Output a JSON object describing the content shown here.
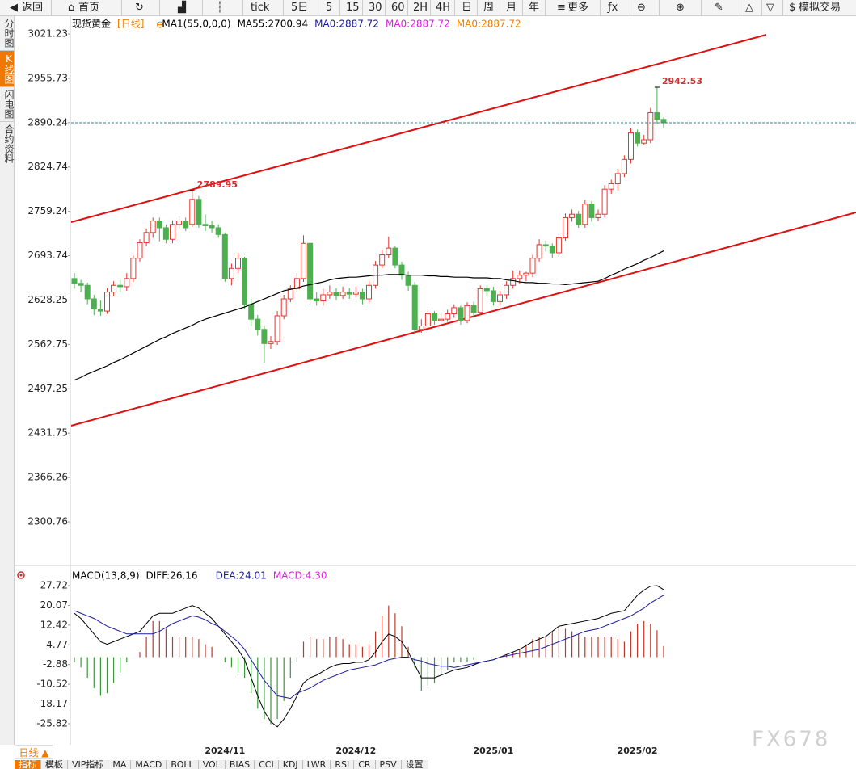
{
  "ui": {
    "toolbar": [
      "返回",
      "首页",
      "tick",
      "5日",
      "5",
      "15",
      "30",
      "60",
      "2H",
      "4H",
      "日",
      "周",
      "月",
      "年",
      "更多",
      "模拟交易"
    ],
    "side_tabs": [
      "分时图",
      "K线图",
      "闪电图",
      "合约资料"
    ],
    "period_button": "日线 ▲",
    "bottom_tabs": [
      "指标",
      "模板",
      "VIP指标",
      "MA",
      "MACD",
      "BOLL",
      "VOL",
      "BIAS",
      "CCI",
      "KDJ",
      "LWR",
      "RSI",
      "CR",
      "PSV",
      "设置"
    ],
    "watermark": "FX678"
  },
  "chart_data": [
    {
      "type": "candlestick",
      "legend": [
        {
          "text": "现货黄金",
          "color": "#000000"
        },
        {
          "text": "[日线]",
          "color": "#f08000"
        },
        {
          "text": "MA1(55,0,0,0)",
          "color": "#000000"
        },
        {
          "text": "MA55:2700.94",
          "color": "#000000"
        },
        {
          "text": "MA0:2887.72",
          "color": "#1a1aa0"
        },
        {
          "text": "MA0:2887.72",
          "color": "#e020e0"
        },
        {
          "text": "MA0:2887.72",
          "color": "#f08000"
        }
      ],
      "categories": [
        null,
        null,
        null,
        null,
        null,
        null,
        null,
        null,
        null,
        null,
        null,
        null,
        null,
        null,
        null,
        null,
        null,
        null,
        null,
        null,
        null,
        null,
        null,
        "2024/11",
        null,
        null,
        null,
        null,
        null,
        null,
        null,
        null,
        null,
        null,
        null,
        null,
        null,
        null,
        null,
        null,
        null,
        null,
        null,
        "2024/12",
        null,
        null,
        null,
        null,
        null,
        null,
        null,
        null,
        null,
        null,
        null,
        null,
        null,
        null,
        null,
        null,
        null,
        null,
        null,
        null,
        "2025/01",
        null,
        null,
        null,
        null,
        null,
        null,
        null,
        null,
        null,
        null,
        null,
        null,
        null,
        null,
        null,
        null,
        null,
        null,
        null,
        null,
        null,
        "2025/02",
        null,
        null,
        null,
        null
      ],
      "candles": [
        [
          2660,
          2668,
          2645,
          2653
        ],
        [
          2653,
          2658,
          2640,
          2650
        ],
        [
          2650,
          2654,
          2622,
          2630
        ],
        [
          2630,
          2636,
          2606,
          2615
        ],
        [
          2615,
          2628,
          2605,
          2612
        ],
        [
          2612,
          2646,
          2608,
          2640
        ],
        [
          2640,
          2656,
          2634,
          2650
        ],
        [
          2650,
          2658,
          2640,
          2648
        ],
        [
          2648,
          2668,
          2642,
          2660
        ],
        [
          2660,
          2694,
          2655,
          2690
        ],
        [
          2690,
          2718,
          2685,
          2713
        ],
        [
          2713,
          2734,
          2708,
          2728
        ],
        [
          2728,
          2750,
          2720,
          2745
        ],
        [
          2745,
          2750,
          2715,
          2735
        ],
        [
          2735,
          2740,
          2712,
          2718
        ],
        [
          2718,
          2746,
          2712,
          2740
        ],
        [
          2740,
          2752,
          2734,
          2745
        ],
        [
          2745,
          2750,
          2730,
          2735
        ],
        [
          2740,
          2789.95,
          2736,
          2777
        ],
        [
          2777,
          2782,
          2735,
          2740
        ],
        [
          2740,
          2755,
          2730,
          2738
        ],
        [
          2738,
          2745,
          2728,
          2735
        ],
        [
          2735,
          2740,
          2720,
          2725
        ],
        [
          2725,
          2728,
          2655,
          2660
        ],
        [
          2660,
          2682,
          2650,
          2675
        ],
        [
          2675,
          2698,
          2668,
          2690
        ],
        [
          2690,
          2692,
          2615,
          2622
        ],
        [
          2622,
          2630,
          2590,
          2600
        ],
        [
          2600,
          2606,
          2576,
          2585
        ],
        [
          2585,
          2590,
          2536,
          2564
        ],
        [
          2564,
          2575,
          2556,
          2567
        ],
        [
          2567,
          2612,
          2562,
          2605
        ],
        [
          2605,
          2636,
          2600,
          2630
        ],
        [
          2630,
          2650,
          2625,
          2645
        ],
        [
          2645,
          2668,
          2640,
          2660
        ],
        [
          2660,
          2724,
          2655,
          2712
        ],
        [
          2712,
          2715,
          2622,
          2630
        ],
        [
          2630,
          2640,
          2620,
          2627
        ],
        [
          2627,
          2645,
          2620,
          2636
        ],
        [
          2636,
          2650,
          2630,
          2640
        ],
        [
          2640,
          2646,
          2628,
          2635
        ],
        [
          2635,
          2648,
          2630,
          2640
        ],
        [
          2640,
          2646,
          2630,
          2637
        ],
        [
          2637,
          2648,
          2632,
          2640
        ],
        [
          2640,
          2645,
          2622,
          2630
        ],
        [
          2630,
          2656,
          2625,
          2650
        ],
        [
          2650,
          2686,
          2645,
          2680
        ],
        [
          2680,
          2702,
          2675,
          2695
        ],
        [
          2695,
          2722,
          2690,
          2705
        ],
        [
          2705,
          2708,
          2675,
          2680
        ],
        [
          2680,
          2685,
          2658,
          2665
        ],
        [
          2665,
          2670,
          2642,
          2650
        ],
        [
          2650,
          2655,
          2580,
          2585
        ],
        [
          2585,
          2600,
          2580,
          2590
        ],
        [
          2590,
          2614,
          2585,
          2608
        ],
        [
          2608,
          2612,
          2592,
          2598
        ],
        [
          2598,
          2608,
          2592,
          2600
        ],
        [
          2600,
          2614,
          2596,
          2608
        ],
        [
          2608,
          2622,
          2602,
          2617
        ],
        [
          2617,
          2620,
          2592,
          2598
        ],
        [
          2598,
          2625,
          2594,
          2620
        ],
        [
          2620,
          2626,
          2604,
          2610
        ],
        [
          2610,
          2650,
          2606,
          2645
        ],
        [
          2645,
          2650,
          2634,
          2642
        ],
        [
          2642,
          2648,
          2620,
          2626
        ],
        [
          2626,
          2642,
          2620,
          2636
        ],
        [
          2636,
          2656,
          2630,
          2650
        ],
        [
          2650,
          2672,
          2645,
          2660
        ],
        [
          2660,
          2672,
          2652,
          2665
        ],
        [
          2665,
          2670,
          2656,
          2668
        ],
        [
          2668,
          2695,
          2662,
          2690
        ],
        [
          2690,
          2718,
          2685,
          2710
        ],
        [
          2710,
          2716,
          2700,
          2708
        ],
        [
          2708,
          2712,
          2690,
          2698
        ],
        [
          2698,
          2726,
          2692,
          2720
        ],
        [
          2720,
          2756,
          2716,
          2750
        ],
        [
          2750,
          2762,
          2744,
          2755
        ],
        [
          2755,
          2760,
          2735,
          2740
        ],
        [
          2740,
          2776,
          2735,
          2770
        ],
        [
          2770,
          2774,
          2744,
          2750
        ],
        [
          2750,
          2762,
          2745,
          2755
        ],
        [
          2755,
          2798,
          2750,
          2792
        ],
        [
          2792,
          2806,
          2785,
          2800
        ],
        [
          2800,
          2822,
          2790,
          2815
        ],
        [
          2815,
          2842,
          2810,
          2836
        ],
        [
          2836,
          2882,
          2830,
          2875
        ],
        [
          2875,
          2880,
          2855,
          2860
        ],
        [
          2860,
          2872,
          2858,
          2865
        ],
        [
          2865,
          2912,
          2860,
          2905
        ],
        [
          2905,
          2942.53,
          2888,
          2895
        ],
        [
          2895,
          2898,
          2882,
          2890
        ]
      ],
      "series": [
        {
          "color": "#000000",
          "values": [
            2510,
            2514,
            2519,
            2523,
            2527,
            2531,
            2536,
            2540,
            2545,
            2550,
            2555,
            2560,
            2565,
            2570,
            2574,
            2579,
            2583,
            2587,
            2591,
            2596,
            2600,
            2603,
            2606,
            2609,
            2612,
            2615,
            2618,
            2622,
            2626,
            2630,
            2634,
            2638,
            2642,
            2644,
            2646,
            2649,
            2651,
            2653,
            2655,
            2658,
            2660,
            2661,
            2662,
            2662,
            2663,
            2664,
            2665,
            2665,
            2666,
            2666,
            2666,
            2665,
            2665,
            2665,
            2664,
            2664,
            2663,
            2663,
            2662,
            2662,
            2662,
            2661,
            2661,
            2661,
            2660,
            2660,
            2658,
            2657,
            2655,
            2654,
            2654,
            2653,
            2653,
            2652,
            2652,
            2651,
            2652,
            2653,
            2654,
            2655,
            2656,
            2660,
            2665,
            2669,
            2674,
            2678,
            2682,
            2687,
            2691,
            2696,
            2700.94
          ]
        }
      ],
      "up_color": "#e8332e",
      "down_color": "#4caf50",
      "high_label_color": "#d03030",
      "price_line_color": "#2a8aa0",
      "ylim": [
        2236.4,
        3045.1
      ],
      "yticks": [
        3021.23,
        2955.73,
        2890.24,
        2824.74,
        2759.24,
        2693.74,
        2628.25,
        2562.75,
        2497.25,
        2431.75,
        2366.26,
        2300.76
      ]
    },
    {
      "type": "macd",
      "legend": [
        {
          "text": "MACD(13,8,9)",
          "color": "#000000"
        },
        {
          "text": "DIFF:26.16",
          "color": "#000000"
        },
        {
          "text": "DEA:24.01",
          "color": "#1a1aa0"
        },
        {
          "text": "MACD:4.30",
          "color": "#e020e0"
        }
      ],
      "series": [
        {
          "color": "#000000",
          "values": [
            17,
            15,
            12,
            9,
            6,
            5,
            6,
            7,
            8,
            9,
            10,
            13,
            16,
            17,
            17,
            17,
            18,
            19,
            20,
            19,
            17,
            15,
            12,
            9,
            6,
            3,
            -1,
            -8,
            -15,
            -21,
            -25,
            -27,
            -24,
            -20,
            -15,
            -10,
            -8,
            -7,
            -5.5,
            -4,
            -3,
            -2.5,
            -2.5,
            -2,
            -2,
            -1,
            2,
            6,
            9,
            8,
            6,
            2,
            -3,
            -8,
            -8,
            -8,
            -7,
            -6,
            -5,
            -4.5,
            -4,
            -3,
            -2,
            -1.5,
            -1,
            0,
            1,
            2,
            3,
            4.5,
            6,
            7,
            8,
            10,
            12,
            12.5,
            13,
            13.5,
            14,
            14.5,
            15,
            16,
            17,
            17.5,
            18,
            21,
            24,
            26,
            27.5,
            27.7,
            26.16
          ]
        },
        {
          "color": "#1a1aa0",
          "values": [
            18,
            17,
            16,
            15,
            13.5,
            12,
            11,
            10,
            9,
            9,
            9,
            9,
            9,
            10,
            11.5,
            13,
            14,
            15,
            16,
            15.5,
            14.5,
            13,
            12,
            10,
            8,
            6,
            3,
            -1,
            -5,
            -9,
            -12,
            -15,
            -15.5,
            -16,
            -14,
            -13,
            -12,
            -10.5,
            -9,
            -8,
            -7,
            -6,
            -5,
            -4.5,
            -4,
            -3.5,
            -3,
            -2,
            -1,
            -0.5,
            0,
            0,
            -1,
            -1.5,
            -2.5,
            -3,
            -3.5,
            -3.5,
            -4,
            -3.5,
            -3,
            -2.5,
            -2,
            -1.5,
            -1,
            0,
            0.5,
            1,
            1.5,
            2,
            2.5,
            3,
            4,
            5,
            6,
            7,
            8,
            9,
            10,
            10.5,
            11,
            12,
            13,
            14,
            15,
            16,
            17.5,
            19,
            21,
            22.5,
            24.01
          ]
        }
      ],
      "bars": {
        "up_color": "#c0392b",
        "down_color": "#3a9a3a",
        "values": [
          -2,
          -4,
          -8,
          -12,
          -15,
          -14,
          -10,
          -6,
          -2,
          0,
          2,
          8,
          14,
          14,
          11,
          8,
          8,
          8,
          8,
          7,
          5,
          4,
          0,
          -2,
          -4,
          -6,
          -8,
          -14,
          -20,
          -24,
          -26,
          -24,
          -17,
          -8,
          -2,
          6,
          8,
          7,
          7,
          8,
          8,
          7,
          5,
          5,
          4,
          5,
          10,
          16,
          20,
          17,
          12,
          4,
          -4,
          -13,
          -11,
          -10,
          -7,
          -5,
          -2,
          -2,
          -2,
          -1,
          0,
          0,
          0,
          0,
          1,
          2,
          3,
          5,
          7,
          8,
          8,
          10,
          12,
          11,
          10,
          9,
          8,
          8,
          8,
          8,
          8,
          7,
          6,
          10,
          13,
          14,
          13,
          10.4,
          4.3
        ]
      },
      "ylim": [
        -34.9,
        33.98
      ],
      "yticks": [
        27.72,
        20.07,
        12.42,
        4.77,
        -2.88,
        -10.52,
        -18.17,
        -25.82
      ]
    }
  ]
}
